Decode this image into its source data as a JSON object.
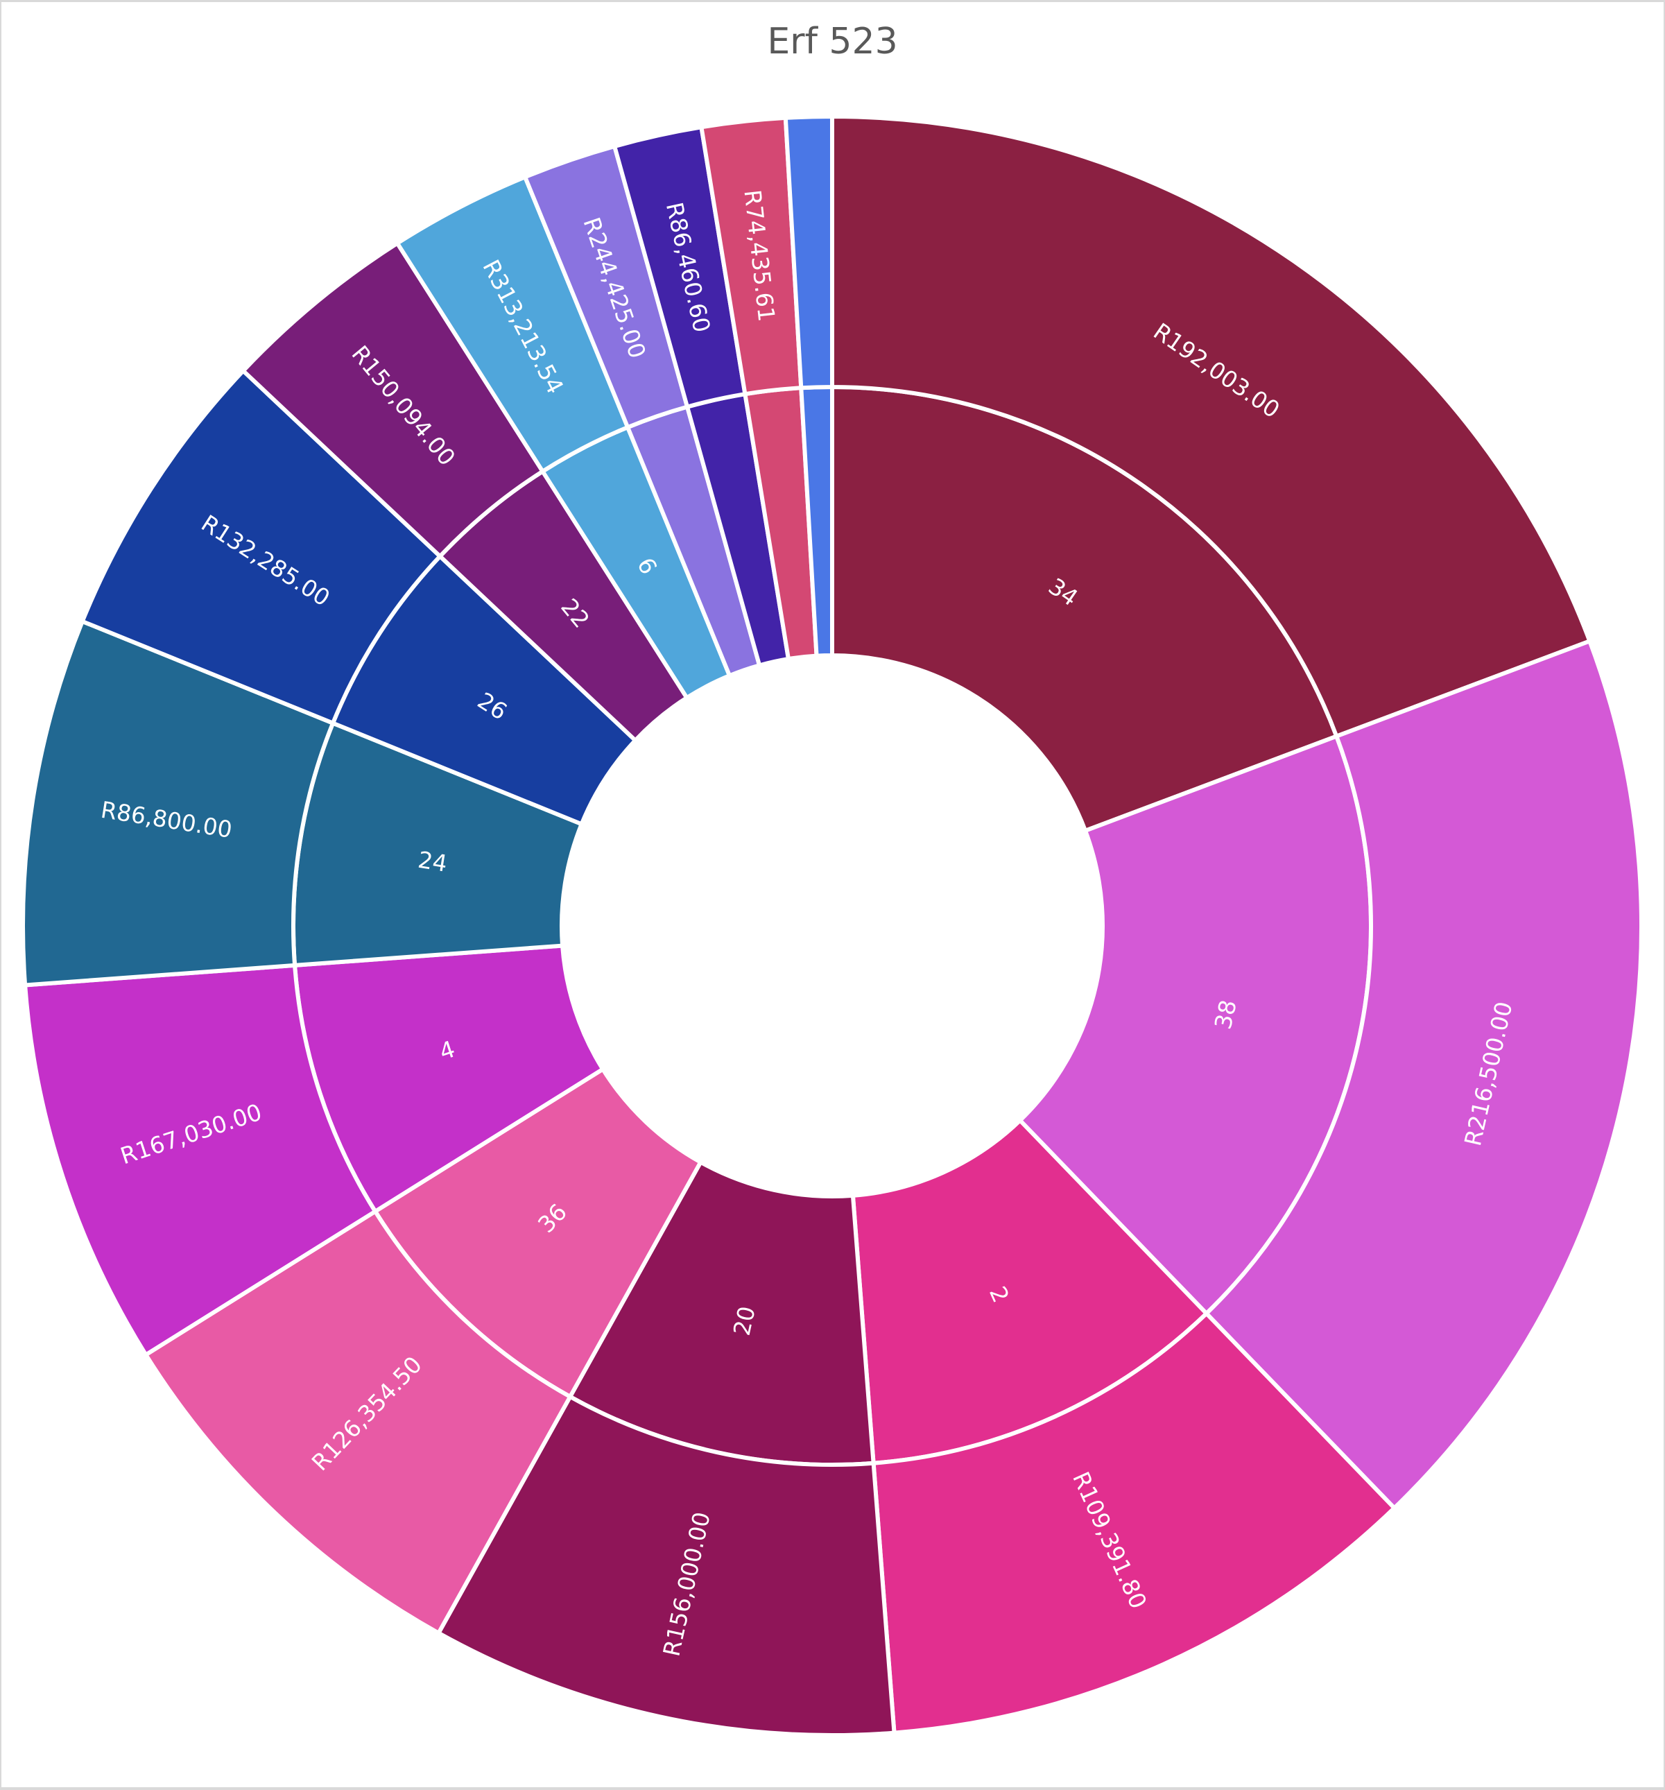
{
  "chart_data": {
    "type": "sunburst",
    "title": "Erf 523",
    "legend": "none",
    "grid": false,
    "center": [
      1200,
      1335
    ],
    "radii": {
      "hole": 390,
      "middle": 777,
      "outer": 1167
    },
    "segments": [
      {
        "inner_label": "34",
        "outer_label": "R192,003.00",
        "start_deg": 0,
        "end_deg": 69.4,
        "color": "#8b2042"
      },
      {
        "inner_label": "38",
        "outer_label": "R216,500.00",
        "start_deg": 69.4,
        "end_deg": 136.0,
        "color": "#d459d6"
      },
      {
        "inner_label": "2",
        "outer_label": "R109,391.80",
        "start_deg": 136.0,
        "end_deg": 175.6,
        "color": "#e22f8f"
      },
      {
        "inner_label": "20",
        "outer_label": "R156,000.00",
        "start_deg": 175.6,
        "end_deg": 209.1,
        "color": "#8f1558"
      },
      {
        "inner_label": "36",
        "outer_label": "R126,354.50",
        "start_deg": 209.1,
        "end_deg": 238.0,
        "color": "#e85aa5"
      },
      {
        "inner_label": "4",
        "outer_label": "R167,030.00",
        "start_deg": 238.0,
        "end_deg": 265.8,
        "color": "#c430c9"
      },
      {
        "inner_label": "24",
        "outer_label": "R86,800.00",
        "start_deg": 265.8,
        "end_deg": 292.1,
        "color": "#216892"
      },
      {
        "inner_label": "26",
        "outer_label": "R132,285.00",
        "start_deg": 292.1,
        "end_deg": 313.3,
        "color": "#173ea0"
      },
      {
        "inner_label": "22",
        "outer_label": "R150,094.00",
        "start_deg": 313.3,
        "end_deg": 327.5,
        "color": "#781e79"
      },
      {
        "inner_label": "6",
        "outer_label": "R313,213.54",
        "start_deg": 327.5,
        "end_deg": 337.7,
        "color": "#50a6db"
      },
      {
        "inner_label": "",
        "outer_label": "R244,425.00",
        "start_deg": 337.7,
        "end_deg": 344.4,
        "color": "#8a73e0"
      },
      {
        "inner_label": "",
        "outer_label": "R86,460.60",
        "start_deg": 344.4,
        "end_deg": 350.7,
        "color": "#4223a8"
      },
      {
        "inner_label": "",
        "outer_label": "R74,435.61",
        "start_deg": 350.7,
        "end_deg": 356.7,
        "color": "#d44873"
      },
      {
        "inner_label": "",
        "outer_label": "",
        "start_deg": 356.7,
        "end_deg": 360,
        "color": "#4a77e6"
      }
    ]
  }
}
